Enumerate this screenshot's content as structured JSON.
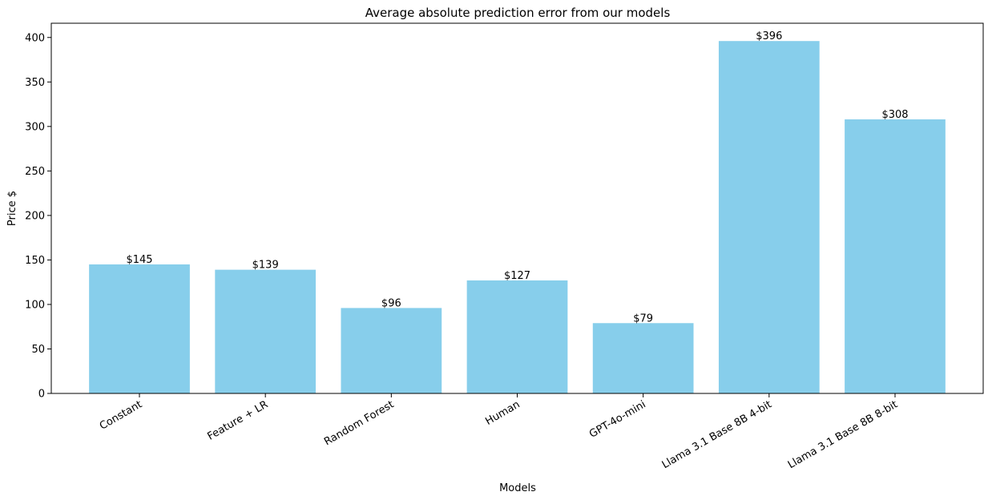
{
  "chart_data": {
    "type": "bar",
    "title": "Average absolute prediction error from our models",
    "xlabel": "Models",
    "ylabel": "Price $",
    "categories": [
      "Constant",
      "Feature + LR",
      "Random Forest",
      "Human",
      "GPT-4o-mini",
      "Llama 3.1 Base 8B 4-bit",
      "Llama 3.1 Base 8B 8-bit"
    ],
    "values": [
      145,
      139,
      96,
      127,
      79,
      396,
      308
    ],
    "data_labels": [
      "$145",
      "$139",
      "$96",
      "$127",
      "$79",
      "$396",
      "$308"
    ],
    "ylim": [
      0,
      416
    ],
    "yticks": [
      0,
      50,
      100,
      150,
      200,
      250,
      300,
      350,
      400
    ],
    "grid": false,
    "bar_color": "#87ceeb"
  }
}
